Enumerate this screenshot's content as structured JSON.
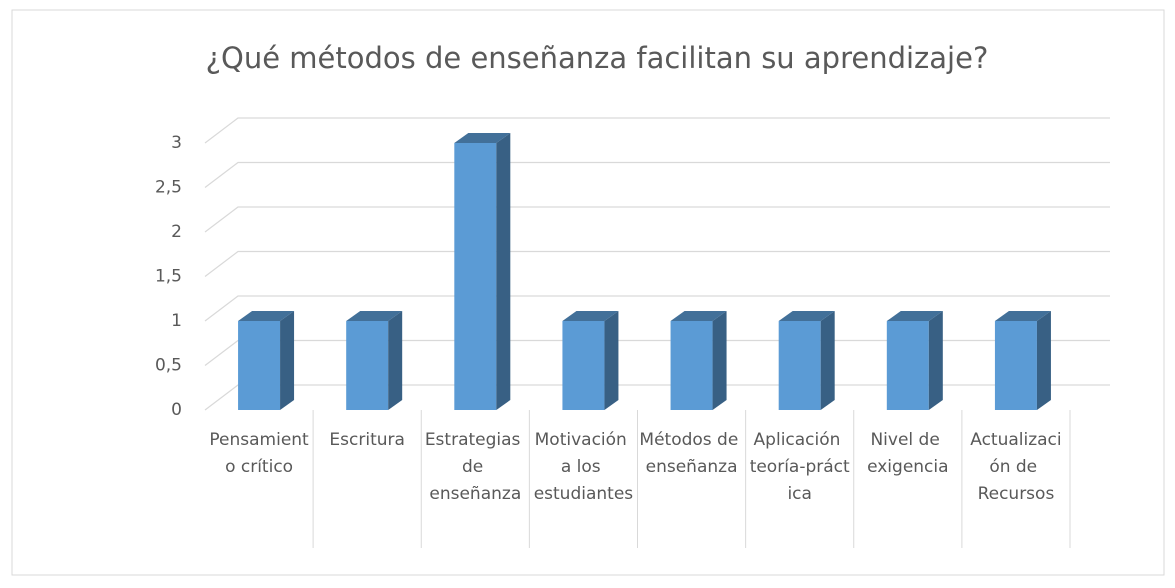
{
  "chart_data": {
    "type": "bar3d",
    "title": "¿Qué métodos de enseñanza facilitan su aprendizaje?",
    "categories": [
      "Pensamiento crítico",
      "Escritura",
      "Estrategias de enseñanza",
      "Motivación a los estudiantes",
      "Métodos de enseñanza",
      "Aplicación teoría-práctica",
      "Nivel de exigencia",
      "Actualización de Recursos"
    ],
    "values": [
      1,
      1,
      3,
      1,
      1,
      1,
      1,
      1
    ],
    "color": "#5b9bd5",
    "ylim": [
      0,
      3
    ],
    "yticks": [
      0,
      {
        "value": 0.5,
        "label": "0,5"
      },
      1,
      {
        "value": 1.5,
        "label": "1,5"
      },
      2,
      {
        "value": 2.5,
        "label": "2,5"
      },
      3
    ],
    "grid": true
  }
}
